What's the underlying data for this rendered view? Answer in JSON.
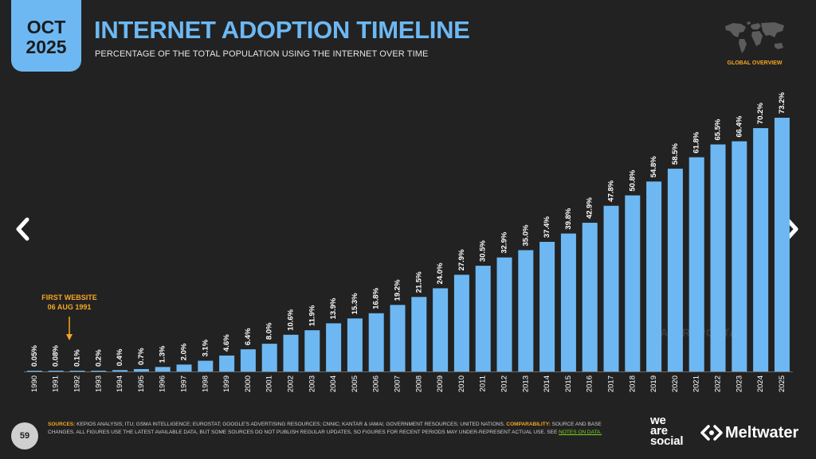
{
  "header": {
    "month": "OCT",
    "year": "2025",
    "title": "INTERNET ADOPTION TIMELINE",
    "subtitle": "PERCENTAGE OF THE TOTAL POPULATION USING THE INTERNET OVER TIME",
    "region_label": "GLOBAL OVERVIEW"
  },
  "navigation": {
    "prev_icon": "chevron-left-icon",
    "next_icon": "chevron-right-icon"
  },
  "chart_data": {
    "type": "bar",
    "categories": [
      "1990",
      "1991",
      "1992",
      "1993",
      "1994",
      "1995",
      "1996",
      "1997",
      "1998",
      "1999",
      "2000",
      "2001",
      "2002",
      "2003",
      "2004",
      "2005",
      "2006",
      "2007",
      "2008",
      "2009",
      "2010",
      "2011",
      "2012",
      "2013",
      "2014",
      "2015",
      "2016",
      "2017",
      "2018",
      "2019",
      "2020",
      "2021",
      "2022",
      "2023",
      "2024",
      "2025"
    ],
    "values": [
      0.05,
      0.08,
      0.1,
      0.2,
      0.4,
      0.7,
      1.3,
      2.0,
      3.1,
      4.6,
      6.4,
      8.0,
      10.6,
      11.9,
      13.9,
      15.3,
      16.8,
      19.2,
      21.5,
      24.0,
      27.9,
      30.5,
      32.9,
      35.0,
      37.4,
      39.8,
      42.9,
      47.8,
      50.8,
      54.8,
      58.5,
      61.8,
      65.5,
      66.4,
      70.2,
      73.2
    ],
    "labels": [
      "0.05%",
      "0.08%",
      "0.1%",
      "0.2%",
      "0.4%",
      "0.7%",
      "1.3%",
      "2.0%",
      "3.1%",
      "4.6%",
      "6.4%",
      "8.0%",
      "10.6%",
      "11.9%",
      "13.9%",
      "15.3%",
      "16.8%",
      "19.2%",
      "21.5%",
      "24.0%",
      "27.9%",
      "30.5%",
      "32.9%",
      "35.0%",
      "37.4%",
      "39.8%",
      "42.9%",
      "47.8%",
      "50.8%",
      "54.8%",
      "58.5%",
      "61.8%",
      "65.5%",
      "66.4%",
      "70.2%",
      "73.2%"
    ],
    "ylim": [
      0,
      100
    ],
    "grid": false,
    "bar_color": "#6db8f2",
    "annotation": {
      "category": "1992",
      "line1": "FIRST WEBSITE",
      "line2": "06 AUG 1991",
      "color": "#f5a623"
    }
  },
  "watermark": "DATAREPORTAL",
  "footer": {
    "page_number": "59",
    "sources_label": "SOURCES:",
    "sources_text": "KEPIOS ANALYSIS; ITU; GSMA INTELLIGENCE; EUROSTAT; GOOGLE'S ADVERTISING RESOURCES; CNNIC; KANTAR & IAMAI; GOVERNMENT RESOURCES; UNITED NATIONS.",
    "comparability_label": "COMPARABILITY:",
    "comparability_text": "SOURCE AND BASE CHANGES. ALL FIGURES USE THE LATEST AVAILABLE DATA, BUT SOME SOURCES DO NOT PUBLISH REGULAR UPDATES, SO FIGURES FOR RECENT PERIODS MAY UNDER-REPRESENT ACTUAL USE. SEE",
    "notes_link": "NOTES ON DATA.",
    "brand_line1": "we",
    "brand_line2": "are",
    "brand_line3": "social",
    "partner_brand": "Meltwater",
    "accent_color": "#f5a623",
    "link_color": "#7ed321"
  }
}
